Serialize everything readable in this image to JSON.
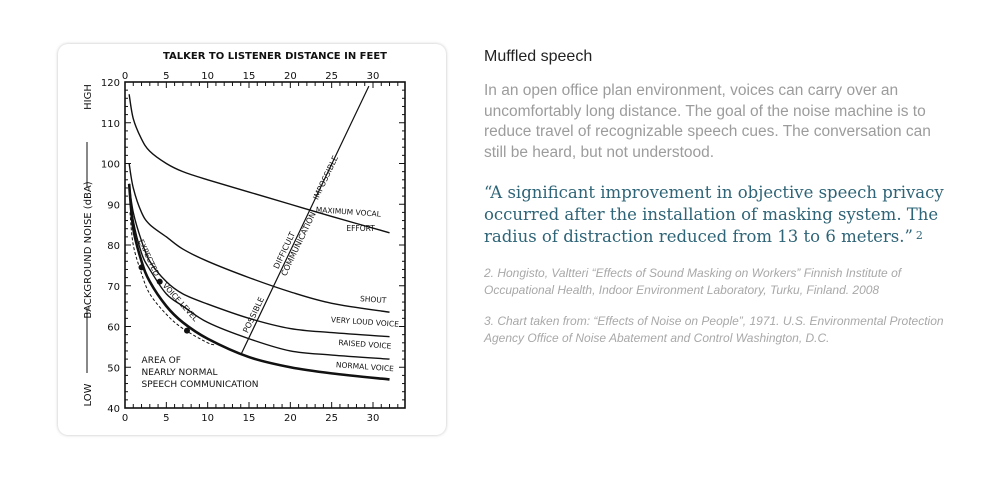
{
  "article": {
    "title": "Muffled speech",
    "body": "In an open office plan environment, voices can carry over an uncomfortably long distance. The goal of the noise machine is to reduce travel of recognizable speech cues. The conversation can still be heard, but not understood.",
    "quote": "“A significant improvement in objective speech privacy occurred after the installation of masking system. The radius of distraction reduced from 13 to 6 meters.”",
    "quote_ref": "2",
    "footnotes": [
      "2. Hongisto, Valtteri “Effects of Sound Masking on Workers” Finnish Institute of Occupational Health, Indoor Environment Laboratory, Turku, Finland. 2008",
      "3. Chart taken from: “Effects of Noise on People”,  1971. U.S. Environmental Protection Agency Office of Noise Abatement and Control Washington, D.C."
    ],
    "quote_color": "#2e6477"
  },
  "chart_data": {
    "type": "line",
    "title": "TALKER TO LISTENER DISTANCE IN FEET",
    "xlabel": "TALKER TO LISTENER DISTANCE IN FEET",
    "ylabel": "BACKGROUND NOISE (dBA)",
    "y_high_label": "HIGH",
    "y_low_label": "LOW",
    "xlim": [
      0,
      34
    ],
    "ylim": [
      40,
      120
    ],
    "x_ticks": [
      "0",
      "5",
      "10",
      "15",
      "20",
      "25",
      "30"
    ],
    "y_ticks": [
      "40",
      "50",
      "60",
      "70",
      "80",
      "90",
      "100",
      "110",
      "120"
    ],
    "grid": false,
    "series": [
      {
        "name": "MAXIMUM VOCAL",
        "name2": "EFFORT",
        "style": "solid",
        "points": [
          [
            0.5,
            117
          ],
          [
            1,
            111
          ],
          [
            2,
            106
          ],
          [
            3,
            103
          ],
          [
            5,
            100
          ],
          [
            7,
            98
          ],
          [
            10,
            96
          ],
          [
            15,
            93
          ],
          [
            20,
            90
          ],
          [
            25,
            87
          ],
          [
            32,
            83
          ]
        ]
      },
      {
        "name": "SHOUT",
        "style": "solid",
        "points": [
          [
            0.5,
            100
          ],
          [
            1,
            94
          ],
          [
            2,
            88
          ],
          [
            3,
            85
          ],
          [
            5,
            82
          ],
          [
            7,
            79
          ],
          [
            10,
            76
          ],
          [
            15,
            72
          ],
          [
            20,
            68.5
          ],
          [
            25,
            65.7
          ],
          [
            32,
            63.5
          ]
        ]
      },
      {
        "name": "VERY LOUD VOICE",
        "style": "solid",
        "points": [
          [
            0.5,
            95
          ],
          [
            1,
            88
          ],
          [
            2,
            81
          ],
          [
            3,
            76
          ],
          [
            5,
            71
          ],
          [
            7,
            68
          ],
          [
            10,
            65.5
          ],
          [
            15,
            62
          ],
          [
            20,
            59.5
          ],
          [
            25,
            58.5
          ],
          [
            32,
            57.5
          ]
        ]
      },
      {
        "name": "RAISED VOICE",
        "style": "solid",
        "points": [
          [
            0.5,
            95
          ],
          [
            1,
            86
          ],
          [
            2,
            78
          ],
          [
            3,
            74
          ],
          [
            5,
            68
          ],
          [
            7,
            65
          ],
          [
            10,
            61
          ],
          [
            15,
            57
          ],
          [
            20,
            54
          ],
          [
            25,
            53
          ],
          [
            32,
            52
          ]
        ]
      },
      {
        "name": "NORMAL VOICE",
        "style": "thick",
        "points": [
          [
            0.5,
            95
          ],
          [
            1,
            84
          ],
          [
            2,
            76
          ],
          [
            3,
            71
          ],
          [
            5,
            65
          ],
          [
            7,
            61
          ],
          [
            10,
            57
          ],
          [
            15,
            52.5
          ],
          [
            20,
            50
          ],
          [
            25,
            48.5
          ],
          [
            32,
            47
          ]
        ]
      },
      {
        "name": "",
        "style": "dashed",
        "points": [
          [
            0.6,
            88
          ],
          [
            1,
            80
          ],
          [
            2,
            73
          ],
          [
            3,
            68
          ],
          [
            5,
            63
          ],
          [
            7,
            59.5
          ],
          [
            10,
            56
          ],
          [
            11,
            55.5
          ]
        ]
      }
    ],
    "expected_voice_points": [
      [
        2,
        74.5
      ],
      [
        4.2,
        71
      ],
      [
        7.5,
        59
      ]
    ],
    "expected_voice_label": [
      "EXPECTED",
      "VOICE LEVEL"
    ],
    "communication_line": [
      [
        14,
        53
      ],
      [
        29.5,
        119
      ]
    ],
    "communication_labels": {
      "main": "COMMUNICATION",
      "possible": "POSSIBLE",
      "difficult": "DIFFICULT",
      "impossible": "IMPOSSIBLE"
    },
    "area_label": [
      "AREA OF",
      "NEARLY NORMAL",
      "SPEECH COMMUNICATION"
    ]
  }
}
